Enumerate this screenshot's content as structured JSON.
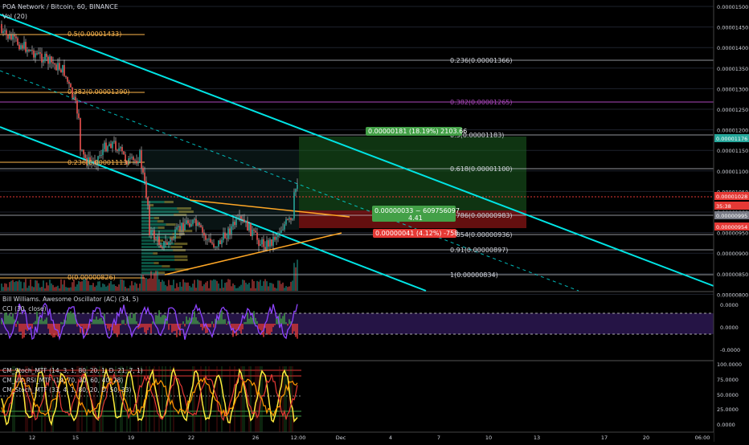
{
  "header": {
    "symbol_title": "POA Network / Bitcoin, 60, BINANCE",
    "volume_label": "Vol (20)"
  },
  "price_axis": {
    "ticks": [
      "0.00001500",
      "0.00001450",
      "0.00001400",
      "0.00001350",
      "0.00001300",
      "0.00001250",
      "0.00001200",
      "0.00001150",
      "0.00001100",
      "0.00001050",
      "0.00001000",
      "0.00000950",
      "0.00000900",
      "0.00000850",
      "0.00000800"
    ],
    "badges": [
      {
        "text": "0.00001176",
        "color": "#26a69a"
      },
      {
        "text": "0.00001028",
        "color": "#e53935"
      },
      {
        "text": "35:38",
        "color": "#e53935"
      },
      {
        "text": "0.00000995",
        "color": "#787b86"
      },
      {
        "text": "0.00000954",
        "color": "#e53935"
      }
    ]
  },
  "fib_left": [
    "0.5(0.00001433)",
    "0.382(0.00001290)",
    "0.236(0.00001113)",
    "0(0.00000826)"
  ],
  "fib_right": [
    "0.236(0.00001366)",
    "0.382(0.00001265)",
    "0.5(0.00001183)",
    "0.618(0.00001100)",
    "0.786(0.00000983)",
    "0.854(0.00000936)",
    "0.91(0.00000897)",
    "1(0.00000834)"
  ],
  "position": {
    "target_label": "0.00000181 (18.19%) 2103.66",
    "stop_label": "0.00000041 (4.12%) -758",
    "entry_label": "0.00000033 ~ 609756097",
    "ratio_label": "4.41"
  },
  "pane_ac": {
    "title": "Bill Williams. Awesome Oscillator (AC) (34, 5)",
    "cci_label": "CCI (30, close)",
    "ticks": [
      "0.0000",
      "0.0000",
      "-0.0000"
    ]
  },
  "pane_stoch": {
    "labels": [
      "CM_Stoch_MTF (14, 3, 1, 80, 20, 1, D, 21, 7, 1)",
      "CM_Ult_RSI_MTF (14, 70, 30, 60, 40, 28)",
      "CM_Stoch_MTF (33, 4, 1, 80, 20, D, 50, 33)"
    ],
    "ticks": [
      "100.0000",
      "75.0000",
      "50.0000",
      "25.0000",
      "0.0000"
    ]
  },
  "time_axis": [
    "12",
    "15",
    "19",
    "22",
    "26",
    "12:00",
    "Dec",
    "4",
    "7",
    "10",
    "13",
    "17",
    "20",
    "06:00"
  ],
  "colors": {
    "cyan_channel": "#00e5e5",
    "fib_line": "#d1d4dc",
    "fib_gold": "#ffb74d",
    "fib_magenta": "#ab47bc",
    "target_green": "#1b5e20",
    "stop_red": "#b71c1c",
    "triangle": "#ffa726"
  }
}
